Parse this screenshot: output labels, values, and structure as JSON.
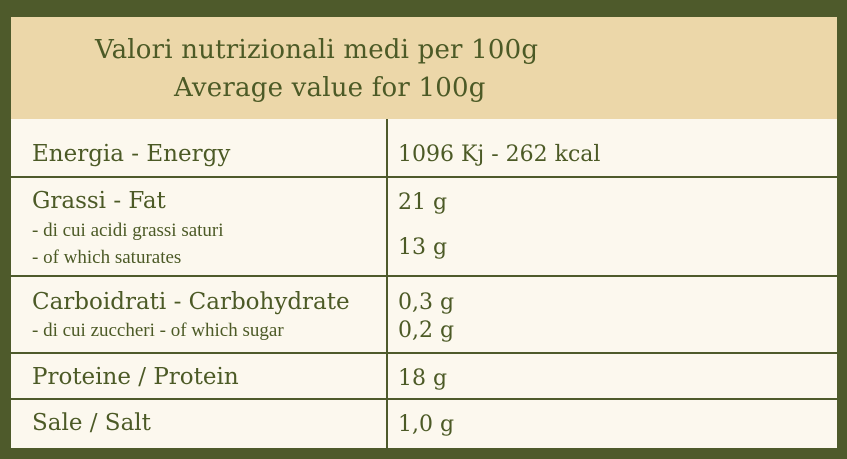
{
  "header": {
    "title_it": "Valori nutrizionali medi per 100g",
    "title_en": "Average value for 100g"
  },
  "rows": [
    {
      "label": "Energia - Energy",
      "value": "1096 Kj - 262 kcal"
    },
    {
      "label": "Grassi - Fat",
      "sub_label_1": "- di cui acidi grassi saturi",
      "sub_label_2": "- of which saturates",
      "value": "21 g",
      "sub_value": "13 g"
    },
    {
      "label": "Carboidrati - Carbohydrate",
      "sub_label": "- di cui zuccheri - of which sugar",
      "value": "0,3 g",
      "sub_value": "0,2 g"
    },
    {
      "label": "Proteine / Protein",
      "value": "18 g"
    },
    {
      "label": "Sale / Salt",
      "value": "1,0 g"
    }
  ],
  "colors": {
    "border": "#4e5a2b",
    "header_bg": "#ecd7a9",
    "body_bg": "#fcf8ee",
    "text": "#4c5a26"
  }
}
